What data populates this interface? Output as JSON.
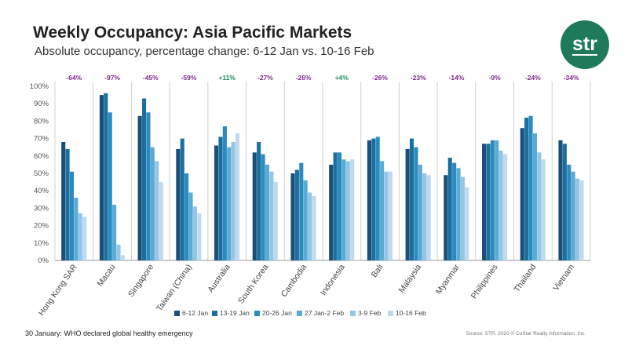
{
  "header": {
    "title": "Weekly Occupancy: Asia Pacific Markets",
    "subtitle": "Absolute occupancy, percentage change: 6-12 Jan vs. 10-16 Feb",
    "logo_text": "str"
  },
  "footer": {
    "note": "30 January: WHO declared global healthy emergency",
    "source": "Source: STR. 2020 © CoStar Realty Information, Inc."
  },
  "chart_data": {
    "type": "bar",
    "categories": [
      "Hong Kong SAR",
      "Macau",
      "Singapore",
      "Taiwan (China)",
      "Australia",
      "South Korea",
      "Cambodia",
      "Indonesia",
      "Bali",
      "Malaysia",
      "Myanmar",
      "Philippines",
      "Thailand",
      "Vietnam"
    ],
    "series": [
      {
        "name": "6-12 Jan",
        "color": "#1a4f7a",
        "values": [
          68,
          95,
          83,
          64,
          66,
          62,
          50,
          55,
          69,
          64,
          49,
          67,
          76,
          69
        ]
      },
      {
        "name": "13-19 Jan",
        "color": "#1b6f9e",
        "values": [
          64,
          96,
          93,
          70,
          71,
          68,
          52,
          62,
          70,
          70,
          59,
          67,
          82,
          67
        ]
      },
      {
        "name": "20-26 Jan",
        "color": "#2a8bc0",
        "values": [
          51,
          85,
          85,
          50,
          77,
          61,
          56,
          62,
          71,
          65,
          56,
          69,
          83,
          55
        ]
      },
      {
        "name": "27 Jan-2 Feb",
        "color": "#5aaad6",
        "values": [
          36,
          32,
          65,
          39,
          65,
          55,
          46,
          58,
          57,
          55,
          53,
          69,
          73,
          51
        ]
      },
      {
        "name": "3-9 Feb",
        "color": "#92c5e6",
        "values": [
          27,
          9,
          57,
          31,
          68,
          51,
          39,
          57,
          51,
          50,
          48,
          63,
          62,
          47
        ]
      },
      {
        "name": "10-16 Feb",
        "color": "#bfd9ee",
        "values": [
          25,
          3,
          45,
          27,
          73,
          45,
          37,
          58,
          51,
          49,
          42,
          61,
          58,
          46
        ]
      }
    ],
    "annotations": [
      "-64%",
      "-97%",
      "-45%",
      "-59%",
      "+11%",
      "-27%",
      "-26%",
      "+4%",
      "-26%",
      "-23%",
      "-14%",
      "-9%",
      "-24%",
      "-34%"
    ],
    "annotation_colors": {
      "negative": "#7b2a8c",
      "positive": "#1f8a5c"
    },
    "y_ticks": [
      "0%",
      "10%",
      "20%",
      "30%",
      "40%",
      "50%",
      "60%",
      "70%",
      "80%",
      "90%",
      "100%"
    ],
    "ylim": [
      0,
      100
    ],
    "grid": false,
    "legend_position": "bottom"
  }
}
